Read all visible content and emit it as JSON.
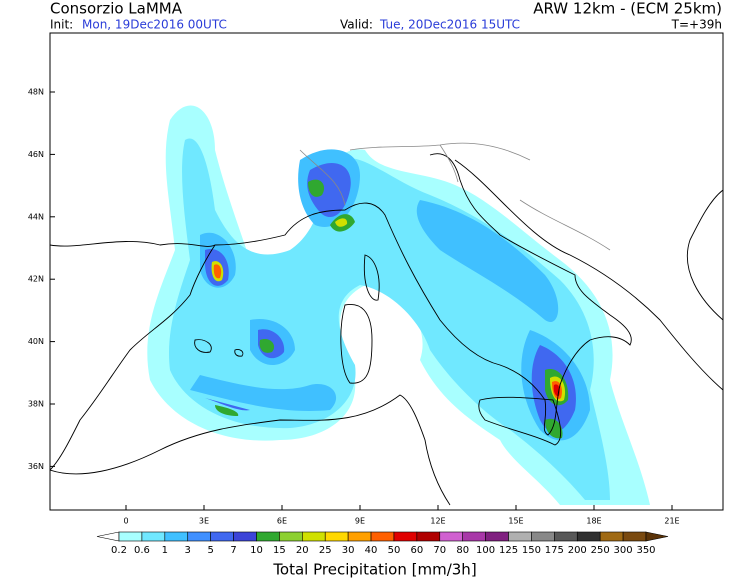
{
  "header": {
    "title": "Consorzio LaMMA",
    "model": "ARW 12km - (ECM 25km)",
    "init_label": "Init:",
    "init_value": "Mon, 19Dec2016 00UTC",
    "valid_label": "Valid:",
    "valid_value": "Tue, 20Dec2016 15UTC",
    "step": "T=+39h"
  },
  "map": {
    "lon_labels": [
      "0",
      "3E",
      "6E",
      "9E",
      "12E",
      "15E",
      "18E",
      "21E"
    ],
    "lat_labels": [
      "48N",
      "46N",
      "44N",
      "42N",
      "40N",
      "38N",
      "36N"
    ]
  },
  "colorbar": {
    "levels": [
      0.2,
      0.6,
      1,
      3,
      5,
      7,
      10,
      15,
      20,
      25,
      30,
      40,
      50,
      60,
      70,
      80,
      100,
      125,
      150,
      175,
      200,
      250,
      300,
      350
    ],
    "colors": [
      "#a8ffff",
      "#70e8ff",
      "#40c0ff",
      "#4090ff",
      "#4068f0",
      "#3c44d8",
      "#30a830",
      "#8cd030",
      "#d0e000",
      "#ffd800",
      "#ffa000",
      "#ff6000",
      "#e00000",
      "#b00000",
      "#d060d0",
      "#a838a8",
      "#802080",
      "#b0b0b0",
      "#888888",
      "#585858",
      "#303030",
      "#a06a14",
      "#7a4a10"
    ],
    "below_color": "#ffffff",
    "above_color": "#5a3308",
    "title": "Total Precipitation [mm/3h]"
  }
}
